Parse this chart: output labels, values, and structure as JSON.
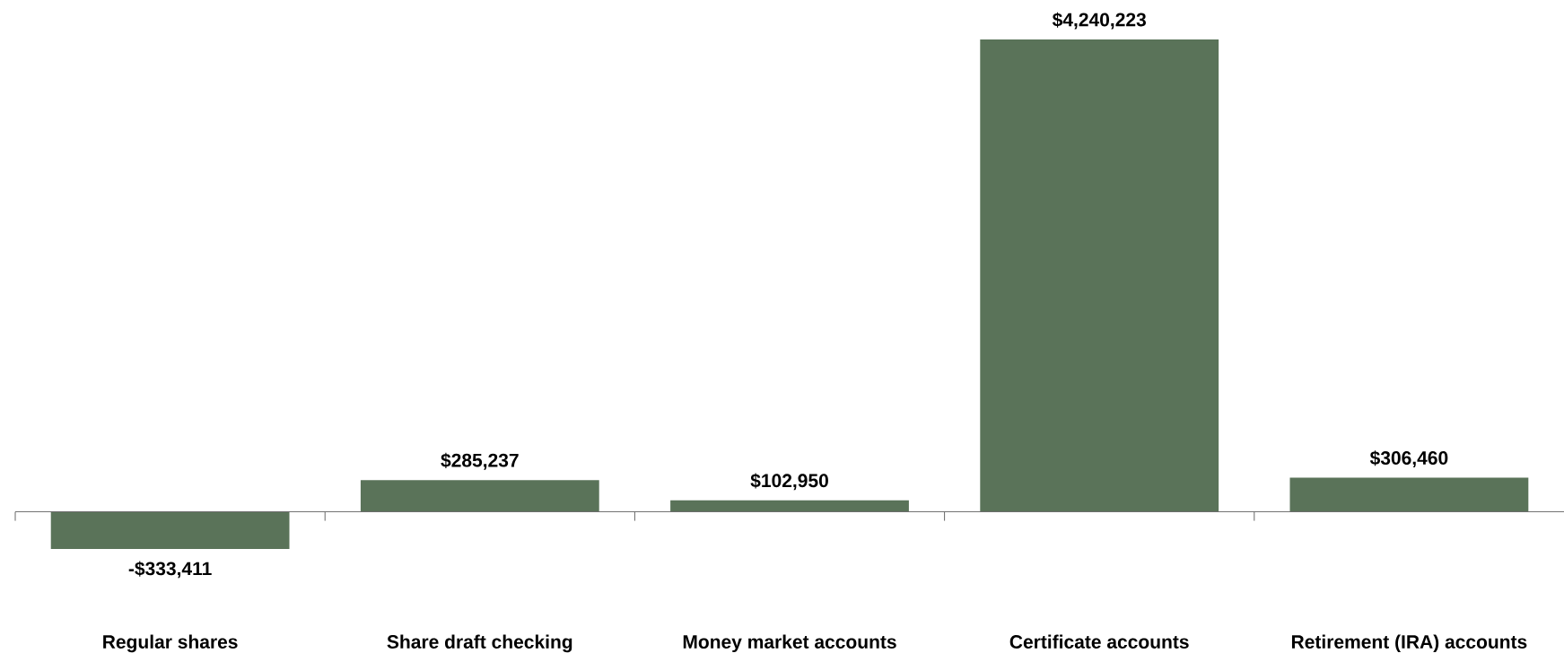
{
  "chart_data": {
    "type": "bar",
    "categories": [
      "Regular shares",
      "Share draft checking",
      "Money market accounts",
      "Certificate accounts",
      "Retirement (IRA) accounts"
    ],
    "values": [
      -333411,
      285237,
      102950,
      4240223,
      306460
    ],
    "value_labels": [
      "-$333,411",
      "$285,237",
      "$102,950",
      "$4,240,223",
      "$306,460"
    ],
    "color": "#5a7359"
  }
}
